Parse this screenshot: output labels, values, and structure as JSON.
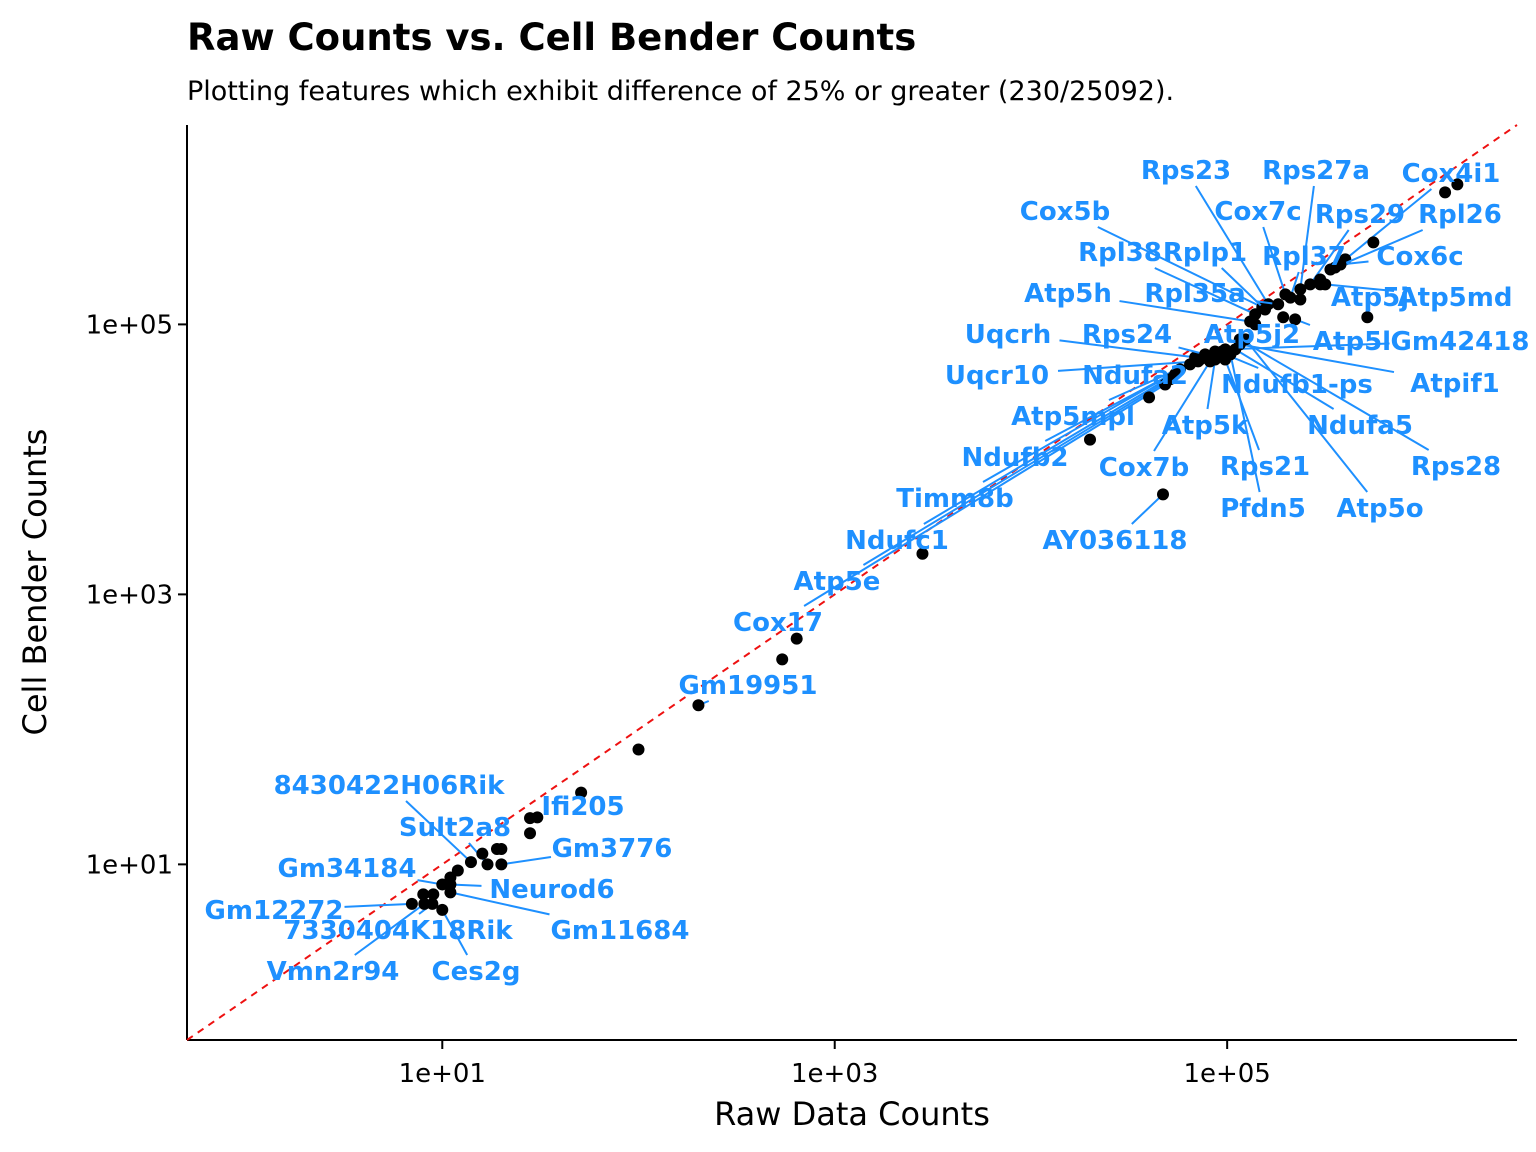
{
  "chart_data": {
    "type": "scatter",
    "title": "Raw Counts vs. Cell Bender Counts",
    "subtitle": "Plotting features which exhibit difference of 25% or greater (230/25092).",
    "x_label": "Raw Data Counts",
    "y_label": "Cell Bender Counts",
    "log_x": true,
    "log_y": true,
    "identity_line": true,
    "identity_line_color": "#ee1111",
    "point_color": "#000000",
    "label_color": "#1e90ff",
    "xlim": [
      0.5,
      3000000
    ],
    "ylim": [
      0.5,
      3000000
    ],
    "xticks": [
      {
        "value": 10,
        "label": "1e+01"
      },
      {
        "value": 1000,
        "label": "1e+03"
      },
      {
        "value": 100000,
        "label": "1e+05"
      }
    ],
    "yticks": [
      {
        "value": 10,
        "label": "1e+01"
      },
      {
        "value": 1000,
        "label": "1e+03"
      },
      {
        "value": 100000,
        "label": "1e+05"
      }
    ],
    "labels": [
      "Rps23",
      "Rps27a",
      "Cox4i1",
      "Cox5b",
      "Cox7c",
      "Rps29",
      "Rpl26",
      "Rpl38",
      "Rplp1",
      "Rpl37",
      "Cox6c",
      "Atp5h",
      "Rpl35a",
      "Atp5j",
      "Atp5md",
      "Uqcrh",
      "Rps24",
      "Atp5j2",
      "Atp5l",
      "Gm42418",
      "Uqcr10",
      "Ndufa2",
      "Ndufb1-ps",
      "Atpif1",
      "Atp5mpl",
      "Ndufa5",
      "Atp5k",
      "Ndufb2",
      "Cox7b",
      "Rps21",
      "Rps28",
      "Timm8b",
      "Pfdn5",
      "Atp5o",
      "AY036118",
      "Ndufc1",
      "Atp5e",
      "Cox17",
      "Gm19951",
      "8430422H06Rik",
      "Ifi205",
      "Sult2a8",
      "Gm3776",
      "Gm34184",
      "Neurod6",
      "Gm12272",
      "7330404K18Rik",
      "Gm11684",
      "Vmn2r94",
      "Ces2g",
      null,
      null,
      null,
      null,
      null,
      null,
      null,
      null,
      null,
      null,
      null,
      null,
      null,
      null,
      null,
      null,
      null,
      null,
      null,
      null,
      null,
      null,
      null,
      null,
      null,
      null,
      null,
      null
    ],
    "x": [
      162000,
      236000,
      400000,
      151000,
      198000,
      265000,
      336000,
      139000,
      156000,
      210000,
      378000,
      131000,
      182000,
      298000,
      316000,
      68700,
      77200,
      86800,
      222000,
      97700,
      71100,
      80000,
      97700,
      116000,
      72800,
      110000,
      86800,
      64700,
      81800,
      97700,
      116000,
      57500,
      104000,
      124000,
      47100,
      54300,
      51200,
      48300,
      202,
      14,
      30.5,
      17,
      20,
      10,
      11,
      7,
      8.9,
      11,
      8.1,
      10,
      8,
      9,
      11,
      12,
      16,
      19,
      20,
      28,
      28,
      51,
      100,
      540,
      640,
      2800,
      20000,
      40000,
      94000,
      139000,
      193000,
      236000,
      298000,
      355000,
      518000,
      556000,
      1290000,
      1490000
    ],
    "values": [
      141000,
      182000,
      303000,
      134000,
      167000,
      198000,
      255000,
      119000,
      129000,
      158000,
      278000,
      105000,
      141000,
      215000,
      198000,
      57000,
      60000,
      63000,
      109000,
      65300,
      53200,
      57000,
      60000,
      71100,
      55000,
      65300,
      55000,
      50600,
      53200,
      55000,
      77400,
      46400,
      60000,
      77400,
      5510,
      42700,
      39200,
      35900,
      151,
      10.4,
      22.3,
      10,
      10,
      7.1,
      7.1,
      5.1,
      5.1,
      6.2,
      5.1,
      4.6,
      6,
      6,
      8,
      9,
      12,
      13,
      13,
      17,
      22,
      34,
      71,
      330,
      470,
      2000,
      14000,
      28800,
      63000,
      100000,
      113000,
      153000,
      198000,
      264000,
      113000,
      405000,
      950000,
      1090000
    ]
  }
}
